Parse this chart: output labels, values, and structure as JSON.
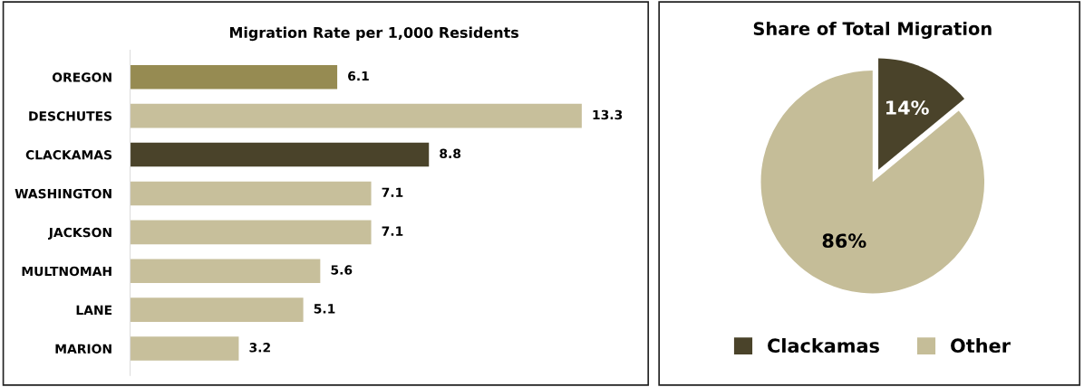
{
  "chart_data": [
    {
      "type": "bar",
      "orientation": "horizontal",
      "title": "Migration Rate per 1,000 Residents",
      "categories": [
        "OREGON",
        "DESCHUTES",
        "CLACKAMAS",
        "WASHINGTON",
        "JACKSON",
        "MULTNOMAH",
        "LANE",
        "MARION"
      ],
      "values": [
        6.1,
        13.3,
        8.8,
        7.1,
        7.1,
        5.6,
        5.1,
        3.2
      ],
      "colors": [
        "#968b52",
        "#c7bf9b",
        "#4a432a",
        "#c7bf9b",
        "#c7bf9b",
        "#c7bf9b",
        "#c7bf9b",
        "#c7bf9b"
      ],
      "data_labels": true,
      "grid": false
    },
    {
      "type": "pie",
      "title": "Share of Total Migration",
      "categories": [
        "Clackamas",
        "Other"
      ],
      "values": [
        14,
        86
      ],
      "value_labels": [
        "14%",
        "86%"
      ],
      "colors": [
        "#4a432a",
        "#c5bd98"
      ],
      "legend": "bottom"
    }
  ]
}
